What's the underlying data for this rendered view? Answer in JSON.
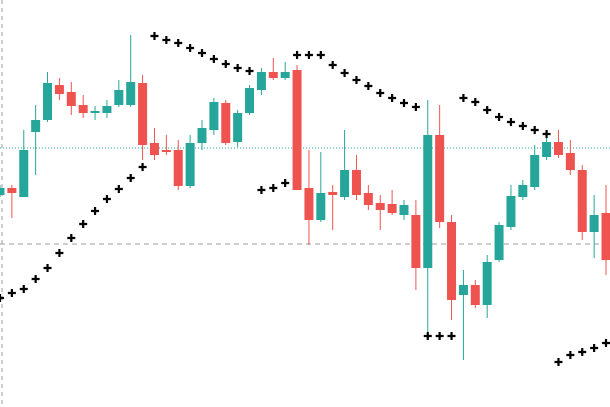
{
  "chart_data": {
    "type": "candlestick",
    "categories": [
      null,
      null,
      null,
      null,
      null,
      null,
      null,
      null,
      null,
      null,
      null,
      null,
      null,
      null,
      null,
      null,
      null,
      null,
      null,
      null,
      null,
      null,
      null,
      null,
      null,
      null,
      null,
      null,
      null,
      null,
      null,
      null,
      null,
      null,
      null,
      null,
      null,
      null,
      null,
      null,
      null,
      null,
      null,
      null,
      null,
      null,
      null,
      null,
      null,
      null,
      null,
      null
    ],
    "open": [
      212,
      219,
      210,
      275,
      287,
      322,
      315,
      302,
      294,
      294,
      302,
      302,
      324,
      264,
      257,
      257,
      221,
      264,
      277,
      304,
      265,
      294,
      317,
      335,
      329,
      337,
      219,
      187,
      215,
      210,
      237,
      214,
      204,
      203,
      192,
      192,
      139,
      272,
      185,
      112,
      122,
      102,
      147,
      180,
      210,
      220,
      250,
      265,
      254,
      237,
      175,
      194
    ],
    "high": [
      222,
      222,
      277,
      302,
      335,
      329,
      325,
      312,
      301,
      307,
      327,
      372,
      332,
      279,
      272,
      267,
      272,
      287,
      309,
      307,
      297,
      322,
      339,
      349,
      345,
      342,
      257,
      255,
      222,
      277,
      252,
      222,
      212,
      217,
      207,
      207,
      307,
      302,
      192,
      137,
      127,
      152,
      185,
      222,
      227,
      262,
      272,
      277,
      267,
      242,
      212,
      222
    ],
    "low": [
      210,
      189,
      210,
      232,
      285,
      307,
      292,
      289,
      287,
      289,
      300,
      300,
      247,
      247,
      252,
      217,
      219,
      257,
      272,
      262,
      260,
      292,
      312,
      327,
      327,
      217,
      162,
      185,
      177,
      207,
      207,
      197,
      177,
      192,
      187,
      117,
      72,
      179,
      87,
      47,
      99,
      89,
      145,
      177,
      207,
      217,
      247,
      249,
      232,
      167,
      149,
      132
    ],
    "close": [
      219,
      214,
      257,
      287,
      324,
      313,
      301,
      294,
      296,
      301,
      317,
      325,
      262,
      252,
      255,
      221,
      264,
      279,
      305,
      264,
      294,
      319,
      335,
      329,
      335,
      217,
      187,
      214,
      212,
      237,
      212,
      202,
      197,
      194,
      202,
      139,
      272,
      185,
      107,
      122,
      102,
      145,
      182,
      211,
      222,
      252,
      265,
      252,
      237,
      175,
      192,
      147
    ],
    "sar": [
      109,
      114,
      118,
      128,
      139,
      154,
      169,
      183,
      196,
      208,
      218,
      229,
      240,
      371,
      367,
      364,
      359,
      354,
      348,
      343,
      339,
      336,
      217,
      219,
      224,
      352,
      352,
      352,
      342,
      334,
      327,
      321,
      314,
      309,
      304,
      300,
      71,
      71,
      71,
      309,
      305,
      297,
      290,
      285,
      281,
      277,
      273,
      45,
      52,
      55,
      59,
      64
    ],
    "up_color": "#26a69a",
    "down_color": "#ef5350",
    "sar_color": "#000000",
    "price_line": 259,
    "price_line_color": "#26a69a",
    "reference_line": 163,
    "reference_line_color": "#9e9e9e",
    "ylim": [
      0,
      407
    ]
  }
}
